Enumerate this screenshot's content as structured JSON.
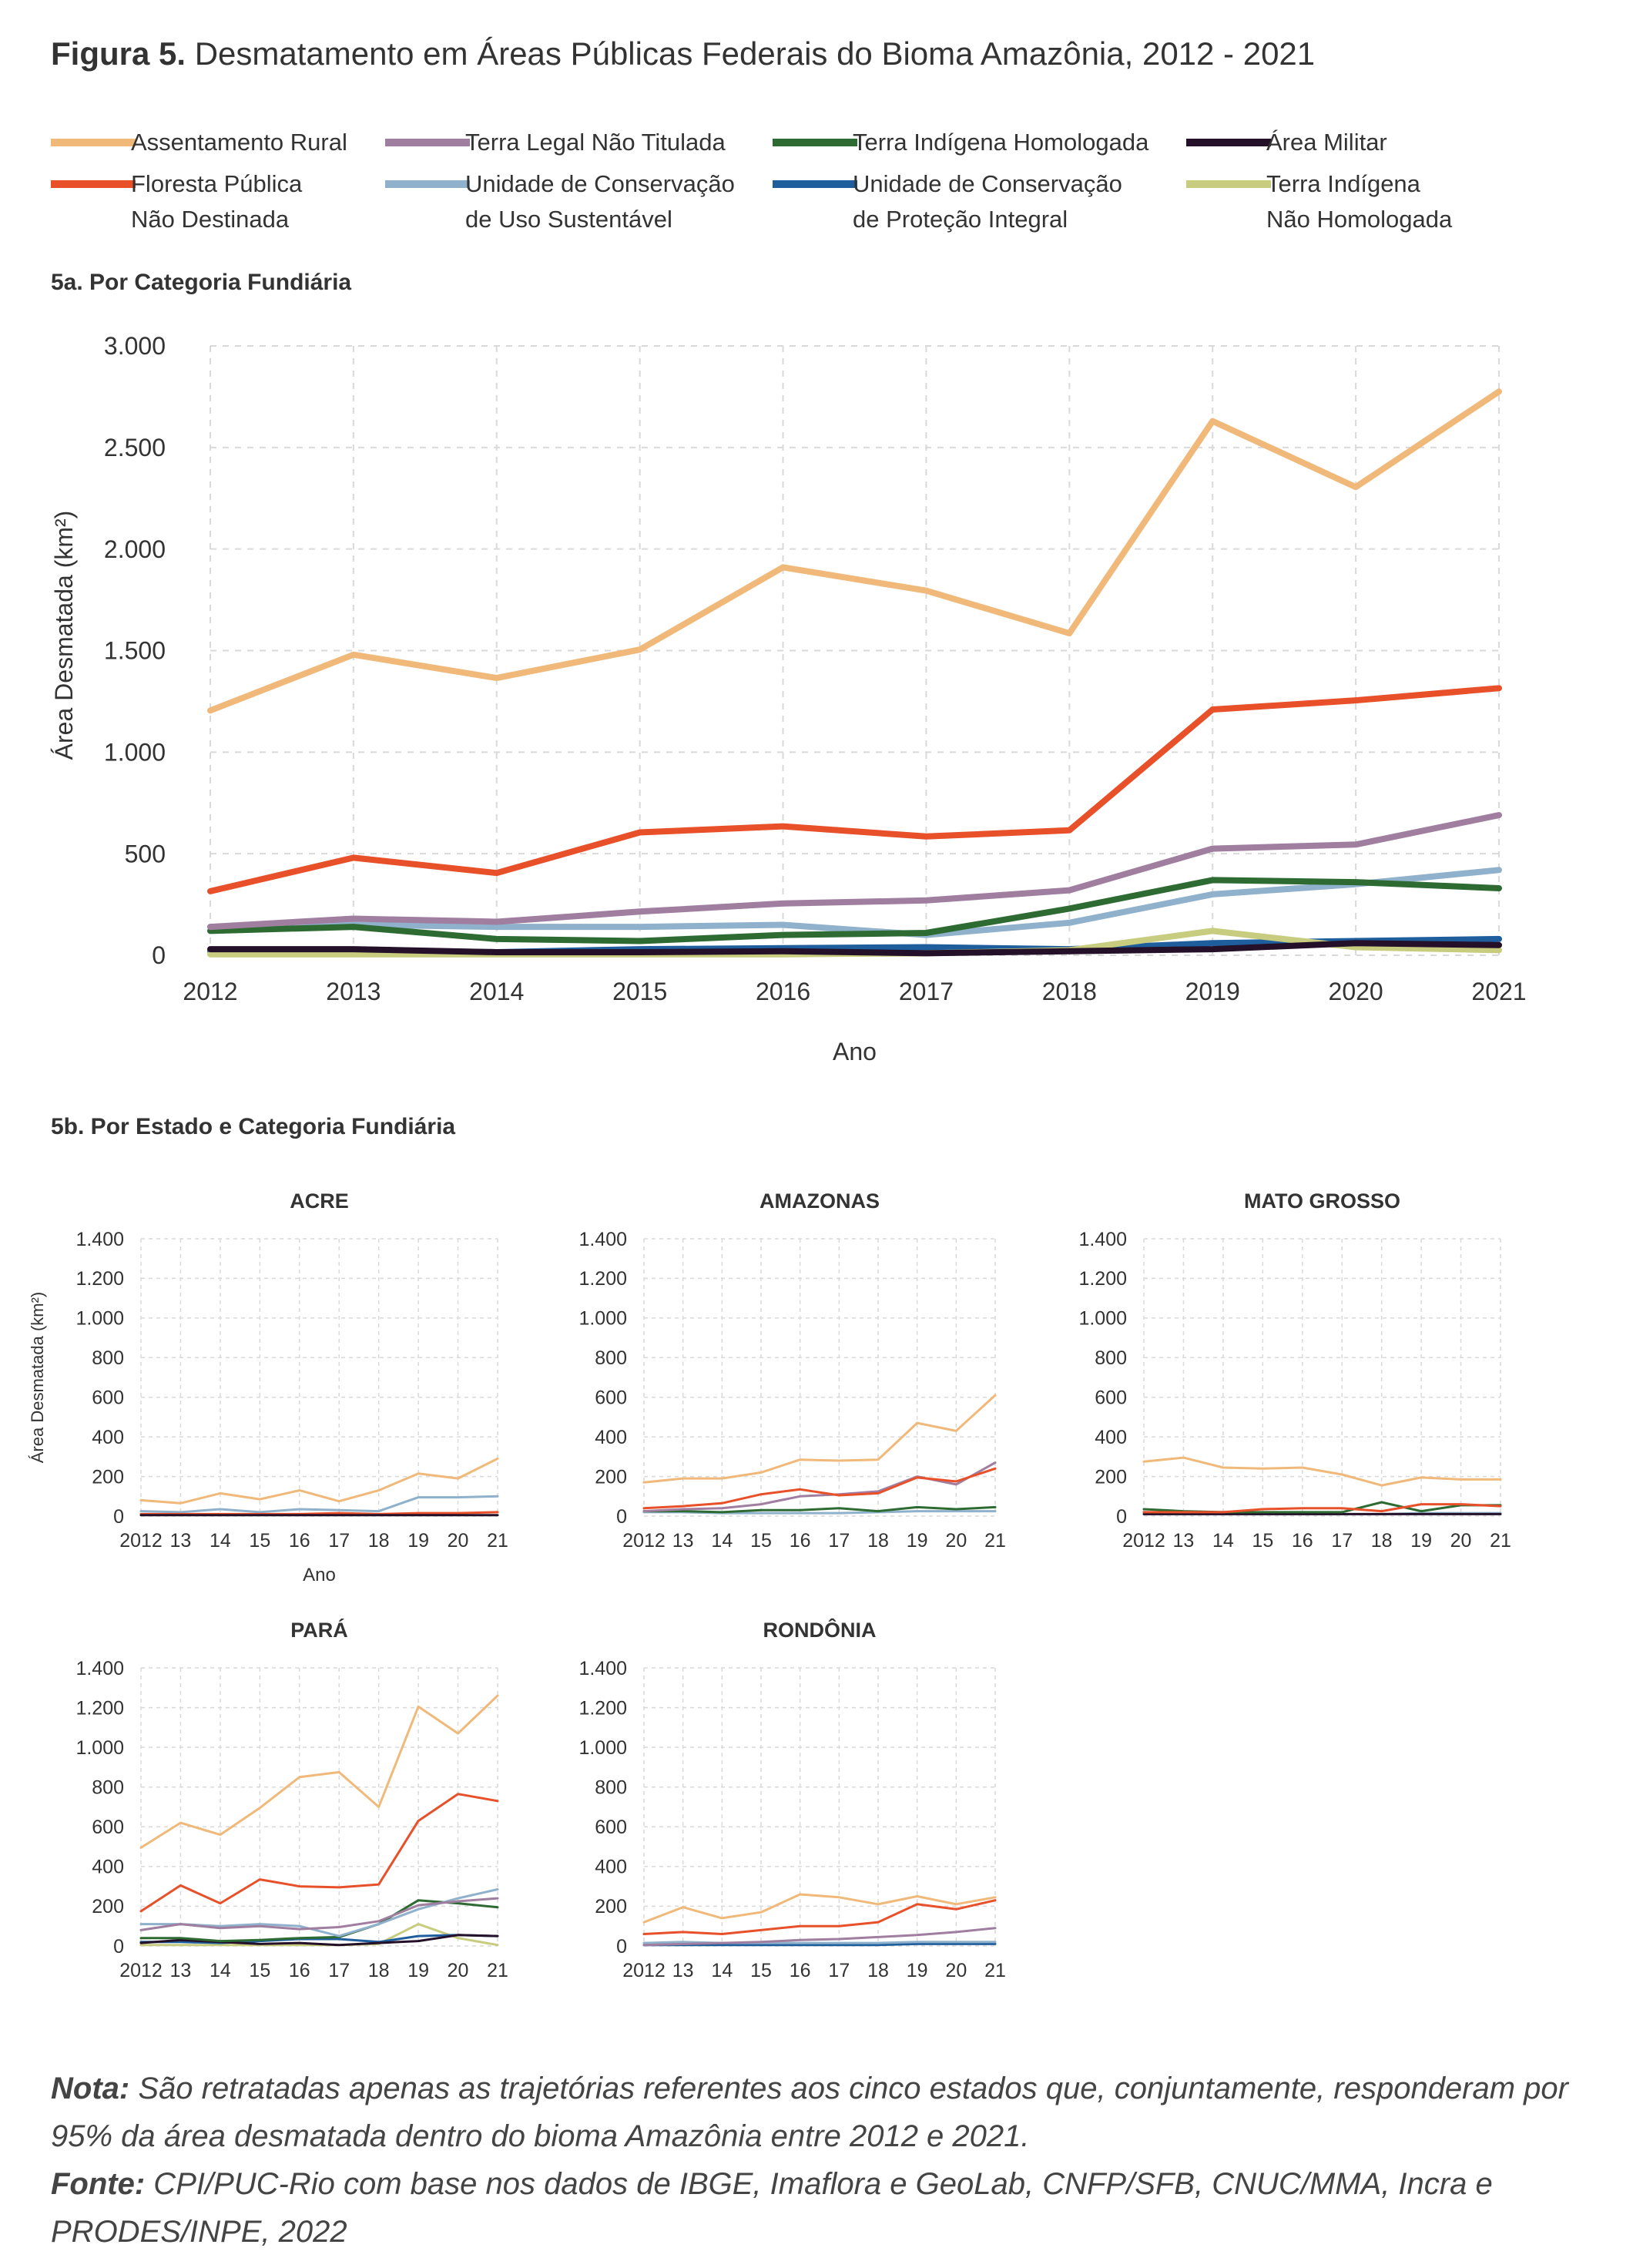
{
  "title": {
    "bold": "Figura 5.",
    "text": " Desmatamento em Áreas Públicas Federais do Bioma Amazônia, 2012 - 2021"
  },
  "legend": [
    {
      "key": "ar",
      "label": "Assentamento Rural",
      "color": "#F0B97A"
    },
    {
      "key": "tl",
      "label": "Terra Legal Não Titulada",
      "color": "#A07EA0"
    },
    {
      "key": "tih",
      "label": "Terra Indígena Homologada",
      "color": "#2E6B33"
    },
    {
      "key": "am",
      "label": "Área Militar",
      "color": "#241029"
    },
    {
      "key": "fp",
      "label": "Floresta Pública\nNão Destinada",
      "color": "#E8502A"
    },
    {
      "key": "ucus",
      "label": "Unidade de Conservação\nde Uso Sustentável",
      "color": "#8FB1CC"
    },
    {
      "key": "ucpi",
      "label": "Unidade de Conservação\nde Proteção Integral",
      "color": "#1F5E9C"
    },
    {
      "key": "tinh",
      "label": "Terra Indígena\nNão Homologada",
      "color": "#C7CC7F"
    }
  ],
  "section_a": "5a. Por Categoria Fundiária",
  "section_b": "5b. Por Estado e Categoria Fundiária",
  "chart_data": [
    {
      "type": "line",
      "xlabel": "Ano",
      "ylabel": "Área Desmatada (km²)",
      "x": [
        2012,
        2013,
        2014,
        2015,
        2016,
        2017,
        2018,
        2019,
        2020,
        2021
      ],
      "x_tick_labels": [
        "2012",
        "2013",
        "2014",
        "2015",
        "2016",
        "2017",
        "2018",
        "2019",
        "2020",
        "2021"
      ],
      "ylim": [
        0,
        3000
      ],
      "y_ticks": [
        0,
        500,
        1000,
        1500,
        2000,
        2500,
        3000
      ],
      "y_tick_labels": [
        "0",
        "500",
        "1.000",
        "1.500",
        "2.000",
        "2.500",
        "3.000"
      ],
      "grid": true,
      "series": [
        {
          "key": "ucpi",
          "values": [
            20,
            25,
            15,
            30,
            35,
            40,
            30,
            60,
            70,
            80
          ]
        },
        {
          "key": "tinh",
          "values": [
            5,
            5,
            5,
            5,
            5,
            10,
            25,
            120,
            40,
            25
          ]
        },
        {
          "key": "ucus",
          "values": [
            140,
            150,
            140,
            140,
            150,
            100,
            160,
            300,
            350,
            420
          ]
        },
        {
          "key": "am",
          "values": [
            30,
            30,
            15,
            15,
            20,
            10,
            20,
            30,
            60,
            50
          ]
        },
        {
          "key": "tih",
          "values": [
            120,
            140,
            80,
            70,
            100,
            110,
            230,
            370,
            360,
            330
          ]
        },
        {
          "key": "tl",
          "values": [
            140,
            180,
            165,
            215,
            255,
            270,
            320,
            525,
            545,
            690
          ]
        },
        {
          "key": "fp",
          "values": [
            315,
            480,
            405,
            605,
            635,
            585,
            615,
            1210,
            1255,
            1315
          ]
        },
        {
          "key": "ar",
          "values": [
            1205,
            1480,
            1365,
            1505,
            1910,
            1795,
            1585,
            2630,
            2305,
            2775
          ]
        }
      ]
    },
    {
      "type": "line",
      "title": "ACRE",
      "xlabel": "Ano",
      "ylabel": "Área Desmatada (km²)",
      "x": [
        2012,
        2013,
        2014,
        2015,
        2016,
        2017,
        2018,
        2019,
        2020,
        2021
      ],
      "x_tick_labels": [
        "2012",
        "13",
        "14",
        "15",
        "16",
        "17",
        "18",
        "19",
        "20",
        "21"
      ],
      "ylim": [
        0,
        1400
      ],
      "y_ticks": [
        0,
        200,
        400,
        600,
        800,
        1000,
        1200,
        1400
      ],
      "y_tick_labels": [
        "0",
        "200",
        "400",
        "600",
        "800",
        "1.000",
        "1.200",
        "1.400"
      ],
      "series": [
        {
          "key": "ucus",
          "values": [
            25,
            20,
            35,
            20,
            35,
            30,
            25,
            95,
            95,
            100
          ]
        },
        {
          "key": "fp",
          "values": [
            10,
            10,
            10,
            10,
            10,
            15,
            10,
            15,
            15,
            20
          ]
        },
        {
          "key": "am",
          "values": [
            5,
            5,
            5,
            5,
            5,
            5,
            5,
            5,
            5,
            5
          ]
        },
        {
          "key": "ar",
          "values": [
            80,
            65,
            115,
            85,
            130,
            75,
            130,
            215,
            190,
            290
          ]
        }
      ]
    },
    {
      "type": "line",
      "title": "AMAZONAS",
      "x": [
        2012,
        2013,
        2014,
        2015,
        2016,
        2017,
        2018,
        2019,
        2020,
        2021
      ],
      "x_tick_labels": [
        "2012",
        "13",
        "14",
        "15",
        "16",
        "17",
        "18",
        "19",
        "20",
        "21"
      ],
      "ylim": [
        0,
        1400
      ],
      "y_ticks": [
        0,
        200,
        400,
        600,
        800,
        1000,
        1200,
        1400
      ],
      "y_tick_labels": [
        "0",
        "200",
        "400",
        "600",
        "800",
        "1.000",
        "1.200",
        "1.400"
      ],
      "series": [
        {
          "key": "ucus",
          "values": [
            20,
            20,
            15,
            15,
            15,
            15,
            20,
            25,
            25,
            25
          ]
        },
        {
          "key": "tih",
          "values": [
            25,
            25,
            20,
            30,
            30,
            40,
            25,
            45,
            35,
            45
          ]
        },
        {
          "key": "tl",
          "values": [
            25,
            35,
            40,
            60,
            100,
            110,
            125,
            200,
            160,
            270
          ]
        },
        {
          "key": "fp",
          "values": [
            40,
            50,
            65,
            110,
            135,
            105,
            115,
            195,
            175,
            240
          ]
        },
        {
          "key": "ar",
          "values": [
            170,
            190,
            190,
            220,
            285,
            280,
            285,
            470,
            430,
            610
          ]
        }
      ]
    },
    {
      "type": "line",
      "title": "MATO GROSSO",
      "x": [
        2012,
        2013,
        2014,
        2015,
        2016,
        2017,
        2018,
        2019,
        2020,
        2021
      ],
      "x_tick_labels": [
        "2012",
        "13",
        "14",
        "15",
        "16",
        "17",
        "18",
        "19",
        "20",
        "21"
      ],
      "ylim": [
        0,
        1400
      ],
      "y_ticks": [
        0,
        200,
        400,
        600,
        800,
        1000,
        1200,
        1400
      ],
      "y_tick_labels": [
        "0",
        "200",
        "400",
        "600",
        "800",
        "1.000",
        "1.200",
        "1.400"
      ],
      "series": [
        {
          "key": "ucus",
          "values": [
            10,
            10,
            10,
            10,
            10,
            10,
            10,
            15,
            15,
            15
          ]
        },
        {
          "key": "am",
          "values": [
            10,
            10,
            10,
            10,
            10,
            10,
            10,
            10,
            10,
            10
          ]
        },
        {
          "key": "tih",
          "values": [
            35,
            25,
            20,
            20,
            20,
            20,
            70,
            25,
            55,
            55
          ]
        },
        {
          "key": "fp",
          "values": [
            20,
            20,
            20,
            35,
            40,
            40,
            25,
            60,
            60,
            50
          ]
        },
        {
          "key": "ar",
          "values": [
            275,
            295,
            245,
            240,
            245,
            210,
            155,
            195,
            185,
            185
          ]
        }
      ]
    },
    {
      "type": "line",
      "title": "PARÁ",
      "x": [
        2012,
        2013,
        2014,
        2015,
        2016,
        2017,
        2018,
        2019,
        2020,
        2021
      ],
      "x_tick_labels": [
        "2012",
        "13",
        "14",
        "15",
        "16",
        "17",
        "18",
        "19",
        "20",
        "21"
      ],
      "ylim": [
        0,
        1400
      ],
      "y_ticks": [
        0,
        200,
        400,
        600,
        800,
        1000,
        1200,
        1400
      ],
      "y_tick_labels": [
        "0",
        "200",
        "400",
        "600",
        "800",
        "1.000",
        "1.200",
        "1.400"
      ],
      "series": [
        {
          "key": "tinh",
          "values": [
            5,
            5,
            5,
            5,
            5,
            5,
            10,
            110,
            40,
            5
          ]
        },
        {
          "key": "ucpi",
          "values": [
            20,
            20,
            15,
            25,
            35,
            35,
            20,
            50,
            55,
            50
          ]
        },
        {
          "key": "am",
          "values": [
            15,
            30,
            20,
            10,
            15,
            5,
            15,
            25,
            55,
            50
          ]
        },
        {
          "key": "tih",
          "values": [
            40,
            40,
            25,
            30,
            40,
            45,
            110,
            230,
            215,
            195
          ]
        },
        {
          "key": "ucus",
          "values": [
            110,
            110,
            100,
            110,
            100,
            50,
            110,
            185,
            240,
            285
          ]
        },
        {
          "key": "tl",
          "values": [
            80,
            110,
            90,
            100,
            85,
            95,
            125,
            205,
            225,
            240
          ]
        },
        {
          "key": "fp",
          "values": [
            175,
            305,
            215,
            335,
            300,
            295,
            310,
            630,
            765,
            730
          ]
        },
        {
          "key": "ar",
          "values": [
            495,
            620,
            560,
            695,
            850,
            875,
            700,
            1205,
            1070,
            1260
          ]
        }
      ]
    },
    {
      "type": "line",
      "title": "RONDÔNIA",
      "x": [
        2012,
        2013,
        2014,
        2015,
        2016,
        2017,
        2018,
        2019,
        2020,
        2021
      ],
      "x_tick_labels": [
        "2012",
        "13",
        "14",
        "15",
        "16",
        "17",
        "18",
        "19",
        "20",
        "21"
      ],
      "ylim": [
        0,
        1400
      ],
      "y_ticks": [
        0,
        200,
        400,
        600,
        800,
        1000,
        1200,
        1400
      ],
      "y_tick_labels": [
        "0",
        "200",
        "400",
        "600",
        "800",
        "1.000",
        "1.200",
        "1.400"
      ],
      "series": [
        {
          "key": "ucpi",
          "values": [
            5,
            5,
            5,
            5,
            5,
            5,
            5,
            10,
            10,
            10
          ]
        },
        {
          "key": "ucus",
          "values": [
            15,
            20,
            15,
            15,
            15,
            15,
            15,
            20,
            20,
            20
          ]
        },
        {
          "key": "tl",
          "values": [
            5,
            10,
            15,
            20,
            30,
            35,
            45,
            55,
            70,
            90
          ]
        },
        {
          "key": "fp",
          "values": [
            60,
            70,
            60,
            80,
            100,
            100,
            120,
            210,
            185,
            230
          ]
        },
        {
          "key": "ar",
          "values": [
            120,
            195,
            140,
            170,
            260,
            245,
            210,
            250,
            210,
            245
          ]
        }
      ]
    }
  ],
  "notes": {
    "nota_label": "Nota:",
    "nota_text": " São retratadas apenas as trajetórias referentes aos cinco estados que, conjuntamente, responderam por 95% da área desmatada dentro do bioma Amazônia entre 2012 e 2021.",
    "fonte_label": "Fonte:",
    "fonte_text": " CPI/PUC-Rio com base nos dados de IBGE, Imaflora e GeoLab, CNFP/SFB, CNUC/MMA, Incra e PRODES/INPE, 2022"
  }
}
